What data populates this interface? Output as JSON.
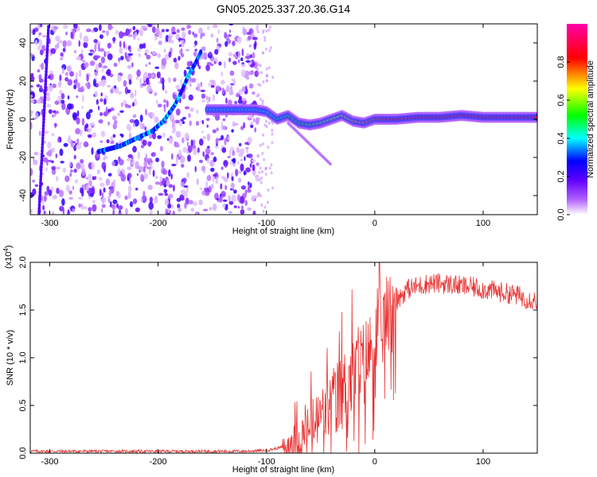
{
  "title": "GN05.2025.337.20.36.G14",
  "chart_data": [
    {
      "type": "heatmap",
      "xlabel": "Height of straight line (km)",
      "ylabel": "Frequency (Hz)",
      "xlim": [
        -318,
        150
      ],
      "ylim": [
        -50,
        50
      ],
      "xticks": [
        -300,
        -200,
        -100,
        0,
        100
      ],
      "yticks": [
        -40,
        -20,
        0,
        20,
        40
      ],
      "colorbar": {
        "label": "Normalized spectral amplitude",
        "range": [
          0,
          1
        ],
        "ticks": [
          0.0,
          0.2,
          0.4,
          0.6,
          0.8
        ],
        "colors": [
          "#ffffff",
          "#8c00ff",
          "#0000ff",
          "#00ffff",
          "#00ff00",
          "#ffff00",
          "#ff0000",
          "#ff00aa"
        ]
      },
      "ridge": {
        "x": [
          -255,
          -235,
          -220,
          -205,
          -195,
          -185,
          -178,
          -172,
          -165,
          -160
        ],
        "y": [
          -17,
          -14,
          -10,
          -6,
          -1,
          7,
          15,
          23,
          30,
          36
        ]
      },
      "track": {
        "x": [
          -155,
          -140,
          -120,
          -110,
          -100,
          -90,
          -80,
          -70,
          -60,
          -50,
          -40,
          -30,
          -20,
          -10,
          0,
          20,
          40,
          60,
          80,
          100,
          120,
          150
        ],
        "y": [
          5,
          5,
          5,
          5,
          4,
          0,
          2,
          -2,
          -3,
          -2,
          0,
          2,
          -1,
          -2,
          0,
          0,
          1,
          1,
          2,
          1,
          1,
          1
        ]
      }
    },
    {
      "type": "line",
      "xlabel": "Height of straight line (km)",
      "ylabel": "SNR (10 * v/v)",
      "multiplier": "(x10",
      "multiplier_exp": "4",
      "xlim": [
        -318,
        150
      ],
      "ylim": [
        0,
        2.0
      ],
      "xticks": [
        -300,
        -200,
        -100,
        0,
        100
      ],
      "yticks": [
        0.0,
        0.5,
        1.0,
        1.5,
        2.0
      ],
      "color": "#e83030",
      "series": [
        {
          "x": [
            -318,
            -300,
            -250,
            -200,
            -150,
            -120,
            -100,
            -90,
            -80,
            -70,
            -60,
            -50,
            -40,
            -30,
            -20,
            -10,
            0,
            10,
            20,
            30,
            40,
            50,
            60,
            70,
            80,
            90,
            100,
            110,
            120,
            130,
            140,
            150
          ],
          "y": [
            0.02,
            0.02,
            0.02,
            0.02,
            0.02,
            0.02,
            0.03,
            0.05,
            0.08,
            0.15,
            0.25,
            0.38,
            0.5,
            0.65,
            0.8,
            0.95,
            1.15,
            1.4,
            1.6,
            1.72,
            1.75,
            1.78,
            1.78,
            1.77,
            1.75,
            1.74,
            1.72,
            1.7,
            1.68,
            1.66,
            1.62,
            1.6
          ]
        }
      ]
    }
  ]
}
